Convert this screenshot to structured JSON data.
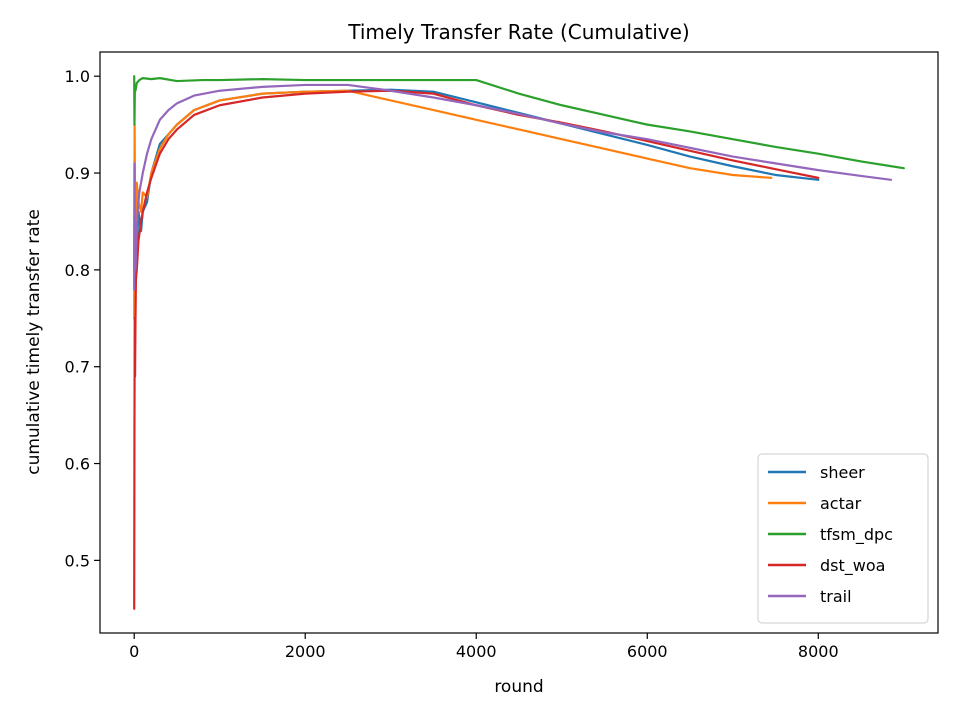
{
  "chart_data": {
    "type": "line",
    "title": "Timely Transfer Rate (Cumulative)",
    "xlabel": "round",
    "ylabel": "cumulative timely transfer rate",
    "xlim": [
      -400,
      9400
    ],
    "ylim": [
      0.425,
      1.025
    ],
    "xticks": [
      0,
      2000,
      4000,
      6000,
      8000
    ],
    "yticks": [
      0.5,
      0.6,
      0.7,
      0.8,
      0.9,
      1.0
    ],
    "xtick_labels": [
      "0",
      "2000",
      "4000",
      "6000",
      "8000"
    ],
    "ytick_labels": [
      "0.5",
      "0.6",
      "0.7",
      "0.8",
      "0.9",
      "1.0"
    ],
    "grid": false,
    "legend_position": "lower-right",
    "series": [
      {
        "name": "sheer",
        "color": "#1f77b4",
        "x": [
          0,
          5,
          10,
          20,
          30,
          50,
          80,
          100,
          150,
          200,
          300,
          400,
          500,
          700,
          1000,
          1500,
          2000,
          2500,
          3000,
          3500,
          4000,
          4500,
          5000,
          5500,
          6000,
          6500,
          7000,
          7500,
          8000
        ],
        "y": [
          0.8,
          0.88,
          0.83,
          0.79,
          0.82,
          0.86,
          0.84,
          0.86,
          0.87,
          0.9,
          0.93,
          0.94,
          0.95,
          0.965,
          0.975,
          0.982,
          0.984,
          0.985,
          0.986,
          0.984,
          0.973,
          0.962,
          0.951,
          0.94,
          0.929,
          0.917,
          0.907,
          0.898,
          0.893
        ]
      },
      {
        "name": "actar",
        "color": "#ff7f0e",
        "x": [
          0,
          5,
          10,
          20,
          30,
          50,
          80,
          100,
          150,
          200,
          300,
          400,
          500,
          700,
          1000,
          1500,
          2000,
          2500,
          3000,
          3500,
          4000,
          4500,
          5000,
          5500,
          6000,
          6500,
          7000,
          7450
        ],
        "y": [
          0.75,
          0.95,
          0.86,
          0.8,
          0.89,
          0.87,
          0.86,
          0.88,
          0.875,
          0.9,
          0.925,
          0.94,
          0.95,
          0.965,
          0.975,
          0.982,
          0.984,
          0.985,
          0.975,
          0.965,
          0.955,
          0.945,
          0.935,
          0.925,
          0.915,
          0.905,
          0.898,
          0.895
        ]
      },
      {
        "name": "tfsm_dpc",
        "color": "#2ca02c",
        "x": [
          0,
          3,
          8,
          15,
          30,
          60,
          100,
          200,
          300,
          500,
          800,
          1000,
          1500,
          2000,
          2500,
          3000,
          3500,
          4000,
          4500,
          5000,
          5500,
          6000,
          6500,
          7000,
          7500,
          8000,
          8500,
          9000
        ],
        "y": [
          1.0,
          0.95,
          0.99,
          0.985,
          0.993,
          0.996,
          0.998,
          0.997,
          0.998,
          0.995,
          0.996,
          0.996,
          0.997,
          0.996,
          0.996,
          0.996,
          0.996,
          0.996,
          0.982,
          0.97,
          0.96,
          0.95,
          0.943,
          0.935,
          0.927,
          0.92,
          0.912,
          0.905
        ]
      },
      {
        "name": "dst_woa",
        "color": "#d62728",
        "x": [
          0,
          3,
          6,
          10,
          15,
          20,
          30,
          50,
          80,
          100,
          150,
          200,
          300,
          400,
          500,
          700,
          1000,
          1500,
          2000,
          2500,
          3000,
          3500,
          4000,
          4500,
          5000,
          5500,
          6000,
          6500,
          7000,
          7500,
          8000
        ],
        "y": [
          0.45,
          0.63,
          0.75,
          0.69,
          0.75,
          0.79,
          0.8,
          0.83,
          0.85,
          0.86,
          0.88,
          0.895,
          0.92,
          0.935,
          0.945,
          0.96,
          0.97,
          0.978,
          0.982,
          0.984,
          0.985,
          0.982,
          0.97,
          0.96,
          0.952,
          0.943,
          0.933,
          0.923,
          0.913,
          0.904,
          0.895
        ]
      },
      {
        "name": "trail",
        "color": "#9467bd",
        "x": [
          0,
          3,
          8,
          15,
          25,
          40,
          60,
          100,
          150,
          200,
          300,
          400,
          500,
          700,
          1000,
          1500,
          2000,
          2500,
          3000,
          3500,
          4000,
          4500,
          5000,
          5500,
          6000,
          6500,
          7000,
          7500,
          8000,
          8500,
          8850
        ],
        "y": [
          0.78,
          0.91,
          0.84,
          0.8,
          0.83,
          0.86,
          0.88,
          0.9,
          0.92,
          0.935,
          0.955,
          0.965,
          0.972,
          0.98,
          0.985,
          0.989,
          0.991,
          0.991,
          0.985,
          0.978,
          0.97,
          0.961,
          0.951,
          0.942,
          0.935,
          0.926,
          0.917,
          0.91,
          0.903,
          0.897,
          0.893
        ]
      }
    ]
  }
}
